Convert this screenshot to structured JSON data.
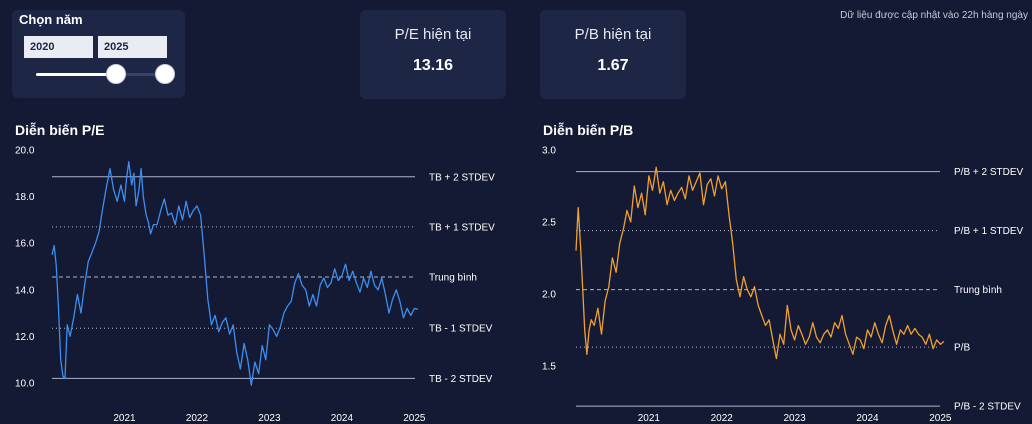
{
  "controls": {
    "title": "Chọn năm",
    "year_from": "2020",
    "year_to": "2025",
    "slider": {
      "min": 2020,
      "max": 2025,
      "low": 2020,
      "high": 2025
    }
  },
  "update_note": "Dữ liệu được cập nhật vào 22h hàng ngày",
  "cards": {
    "pe": {
      "label": "P/E hiện tại",
      "value": "13.16"
    },
    "pb": {
      "label": "P/B hiện tại",
      "value": "1.67"
    }
  },
  "colors": {
    "pe_line": "#3d8ef0",
    "pb_line": "#f0a030",
    "background": "#141a33",
    "panel": "#1e2646"
  },
  "chart_data": [
    {
      "type": "line",
      "title": "Diễn biến P/E",
      "xlabel": "",
      "ylabel": "",
      "xlim": [
        2020.0,
        2025.05
      ],
      "ylim": [
        10.0,
        20.0
      ],
      "y_ticks": [
        "10.0",
        "12.0",
        "14.0",
        "16.0",
        "18.0",
        "20.0"
      ],
      "x_ticks": [
        {
          "value": 2021,
          "label": "2021"
        },
        {
          "value": 2022,
          "label": "2022"
        },
        {
          "value": 2023,
          "label": "2023"
        },
        {
          "value": 2024,
          "label": "2024"
        },
        {
          "value": 2025,
          "label": "2025"
        }
      ],
      "reference_lines": [
        {
          "label": "TB + 2 STDEV",
          "value": 18.85,
          "style": "solid"
        },
        {
          "label": "TB + 1 STDEV",
          "value": 16.7,
          "style": "dotted"
        },
        {
          "label": "Trung bình",
          "value": 14.55,
          "style": "dashed"
        },
        {
          "label": "TB - 1 STDEV",
          "value": 12.35,
          "style": "dotted"
        },
        {
          "label": "TB - 2 STDEV",
          "value": 10.2,
          "style": "solid"
        }
      ],
      "grid": false,
      "series": [
        {
          "color": "#3d8ef0",
          "x": [
            2020.0,
            2020.03,
            2020.06,
            2020.09,
            2020.12,
            2020.15,
            2020.18,
            2020.21,
            2020.25,
            2020.3,
            2020.35,
            2020.4,
            2020.45,
            2020.5,
            2020.55,
            2020.6,
            2020.65,
            2020.7,
            2020.75,
            2020.8,
            2020.85,
            2020.9,
            2020.95,
            2021.0,
            2021.03,
            2021.06,
            2021.1,
            2021.13,
            2021.16,
            2021.2,
            2021.23,
            2021.26,
            2021.3,
            2021.33,
            2021.36,
            2021.4,
            2021.45,
            2021.5,
            2021.55,
            2021.6,
            2021.65,
            2021.7,
            2021.75,
            2021.8,
            2021.85,
            2021.9,
            2021.95,
            2022.0,
            2022.05,
            2022.1,
            2022.15,
            2022.2,
            2022.25,
            2022.3,
            2022.35,
            2022.4,
            2022.45,
            2022.5,
            2022.55,
            2022.6,
            2022.65,
            2022.7,
            2022.75,
            2022.8,
            2022.85,
            2022.9,
            2022.95,
            2023.0,
            2023.05,
            2023.1,
            2023.15,
            2023.2,
            2023.25,
            2023.3,
            2023.35,
            2023.4,
            2023.45,
            2023.5,
            2023.55,
            2023.6,
            2023.65,
            2023.7,
            2023.75,
            2023.8,
            2023.85,
            2023.9,
            2023.95,
            2024.0,
            2024.05,
            2024.1,
            2024.15,
            2024.2,
            2024.25,
            2024.3,
            2024.35,
            2024.4,
            2024.45,
            2024.5,
            2024.55,
            2024.6,
            2024.65,
            2024.7,
            2024.75,
            2024.8,
            2024.85,
            2024.9,
            2024.95,
            2025.0,
            2025.05
          ],
          "values": [
            15.5,
            15.9,
            15.0,
            13.2,
            11.0,
            10.3,
            10.2,
            12.5,
            12.0,
            12.8,
            13.8,
            13.0,
            14.2,
            15.2,
            15.6,
            16.0,
            16.5,
            17.5,
            18.4,
            19.2,
            18.3,
            17.8,
            18.5,
            17.8,
            18.8,
            19.5,
            18.5,
            19.0,
            17.6,
            18.3,
            19.2,
            18.0,
            17.2,
            16.9,
            16.4,
            16.8,
            16.8,
            17.4,
            17.9,
            17.2,
            17.3,
            16.8,
            17.6,
            17.0,
            17.8,
            17.1,
            17.4,
            17.6,
            17.2,
            15.5,
            13.6,
            12.5,
            12.9,
            12.2,
            12.6,
            12.8,
            12.1,
            12.5,
            11.3,
            10.6,
            11.7,
            11.0,
            9.9,
            10.9,
            10.4,
            11.6,
            11.0,
            12.5,
            12.3,
            12.0,
            12.4,
            13.0,
            13.3,
            13.5,
            14.3,
            14.7,
            14.2,
            14.0,
            13.3,
            13.8,
            13.3,
            14.2,
            14.5,
            14.1,
            14.3,
            14.9,
            14.4,
            14.6,
            15.1,
            14.4,
            14.8,
            14.3,
            13.9,
            14.5,
            14.1,
            14.8,
            14.2,
            14.0,
            14.5,
            13.8,
            13.0,
            13.6,
            14.0,
            13.5,
            12.8,
            13.2,
            12.9,
            13.2,
            13.16
          ]
        }
      ]
    },
    {
      "type": "line",
      "title": "Diễn biến P/B",
      "xlabel": "",
      "ylabel": "",
      "xlim": [
        2020.0,
        2025.05
      ],
      "ylim": [
        1.2,
        3.0
      ],
      "y_ticks": [
        "1.5",
        "2.0",
        "2.5",
        "3.0"
      ],
      "x_ticks": [
        {
          "value": 2021,
          "label": "2021"
        },
        {
          "value": 2022,
          "label": "2022"
        },
        {
          "value": 2023,
          "label": "2023"
        },
        {
          "value": 2024,
          "label": "2024"
        },
        {
          "value": 2025,
          "label": "2025"
        }
      ],
      "reference_lines": [
        {
          "label": "P/B + 2 STDEV",
          "value": 2.85,
          "style": "solid"
        },
        {
          "label": "P/B + 1 STDEV",
          "value": 2.44,
          "style": "dotted"
        },
        {
          "label": "Trung bình",
          "value": 2.03,
          "style": "dashed"
        },
        {
          "label": "P/B",
          "value": 1.63,
          "style": "dotted"
        },
        {
          "label": "P/B - 2 STDEV",
          "value": 1.22,
          "style": "solid"
        }
      ],
      "grid": false,
      "series": [
        {
          "color": "#f0a030",
          "x": [
            2020.0,
            2020.03,
            2020.06,
            2020.09,
            2020.12,
            2020.15,
            2020.18,
            2020.21,
            2020.25,
            2020.3,
            2020.35,
            2020.4,
            2020.45,
            2020.5,
            2020.55,
            2020.6,
            2020.65,
            2020.7,
            2020.75,
            2020.8,
            2020.85,
            2020.9,
            2020.95,
            2021.0,
            2021.05,
            2021.1,
            2021.15,
            2021.2,
            2021.25,
            2021.3,
            2021.35,
            2021.4,
            2021.45,
            2021.5,
            2021.55,
            2021.6,
            2021.65,
            2021.7,
            2021.75,
            2021.8,
            2021.85,
            2021.9,
            2021.95,
            2022.0,
            2022.05,
            2022.1,
            2022.15,
            2022.2,
            2022.25,
            2022.3,
            2022.35,
            2022.4,
            2022.45,
            2022.5,
            2022.55,
            2022.6,
            2022.65,
            2022.7,
            2022.75,
            2022.8,
            2022.85,
            2022.9,
            2022.95,
            2023.0,
            2023.05,
            2023.1,
            2023.15,
            2023.2,
            2023.25,
            2023.3,
            2023.35,
            2023.4,
            2023.45,
            2023.5,
            2023.55,
            2023.6,
            2023.65,
            2023.7,
            2023.75,
            2023.8,
            2023.85,
            2023.9,
            2023.95,
            2024.0,
            2024.05,
            2024.1,
            2024.15,
            2024.2,
            2024.25,
            2024.3,
            2024.35,
            2024.4,
            2024.45,
            2024.5,
            2024.55,
            2024.6,
            2024.65,
            2024.7,
            2024.75,
            2024.8,
            2024.85,
            2024.9,
            2024.95,
            2025.0,
            2025.05
          ],
          "values": [
            2.3,
            2.6,
            2.35,
            2.05,
            1.75,
            1.58,
            1.75,
            1.82,
            1.78,
            1.9,
            1.72,
            1.95,
            2.05,
            2.25,
            2.15,
            2.35,
            2.45,
            2.58,
            2.5,
            2.75,
            2.6,
            2.7,
            2.55,
            2.82,
            2.72,
            2.88,
            2.7,
            2.78,
            2.62,
            2.72,
            2.65,
            2.7,
            2.74,
            2.66,
            2.82,
            2.72,
            2.78,
            2.84,
            2.62,
            2.76,
            2.8,
            2.68,
            2.82,
            2.73,
            2.78,
            2.55,
            2.35,
            2.1,
            1.98,
            2.12,
            2.03,
            1.98,
            2.05,
            1.92,
            1.85,
            1.78,
            1.82,
            1.68,
            1.55,
            1.72,
            1.65,
            1.92,
            1.75,
            1.68,
            1.78,
            1.72,
            1.65,
            1.7,
            1.8,
            1.7,
            1.66,
            1.72,
            1.75,
            1.7,
            1.8,
            1.76,
            1.85,
            1.72,
            1.65,
            1.58,
            1.7,
            1.68,
            1.62,
            1.75,
            1.7,
            1.8,
            1.72,
            1.66,
            1.78,
            1.85,
            1.74,
            1.65,
            1.75,
            1.72,
            1.78,
            1.72,
            1.76,
            1.72,
            1.7,
            1.65,
            1.72,
            1.62,
            1.68,
            1.65,
            1.67
          ]
        }
      ]
    }
  ]
}
